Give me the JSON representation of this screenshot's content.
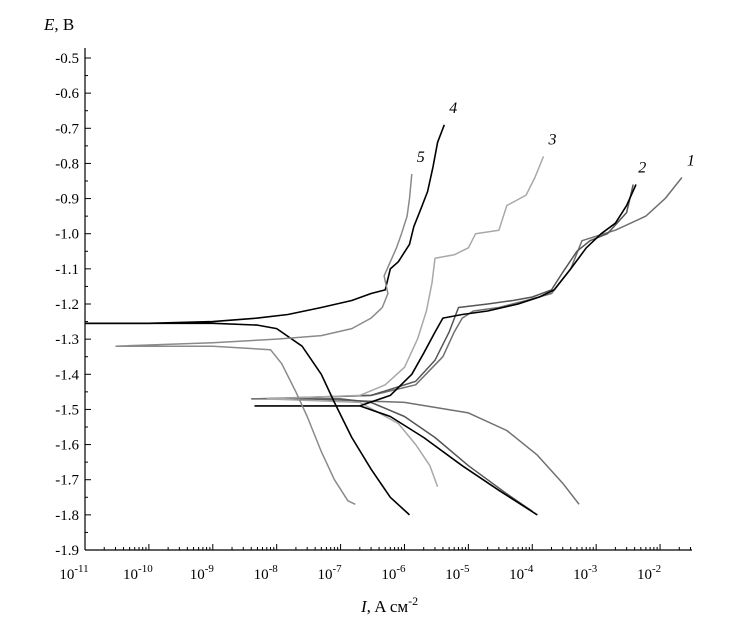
{
  "chart_data": {
    "type": "line",
    "title": "",
    "ylabel_symbol": "E",
    "ylabel_unit": ", B",
    "xlabel_symbol": "I",
    "xlabel_unit": ", A см",
    "xlabel_exp": "-2",
    "x_scale": "log",
    "xlim": [
      1e-11,
      0.031623
    ],
    "ylim": [
      -1.9,
      -0.5
    ],
    "grid": false,
    "y_ticks": [
      "-0.5",
      "-0.6",
      "-0.7",
      "-0.8",
      "-0.9",
      "-1.0",
      "-1.1",
      "-1.2",
      "-1.3",
      "-1.4",
      "-1.5",
      "-1.6",
      "-1.7",
      "-1.8",
      "-1.9"
    ],
    "x_ticks": [
      {
        "base": "10",
        "exp": "-11"
      },
      {
        "base": "10",
        "exp": "-10"
      },
      {
        "base": "10",
        "exp": "-9"
      },
      {
        "base": "10",
        "exp": "-8"
      },
      {
        "base": "10",
        "exp": "-7"
      },
      {
        "base": "10",
        "exp": "-6"
      },
      {
        "base": "10",
        "exp": "-5"
      },
      {
        "base": "10",
        "exp": "-4"
      },
      {
        "base": "10",
        "exp": "-3"
      },
      {
        "base": "10",
        "exp": "-2"
      }
    ],
    "series": [
      {
        "name": "1",
        "color": "#707070",
        "cathodic": [
          [
            4e-09,
            -1.47
          ],
          [
            3e-08,
            -1.47
          ],
          [
            1e-06,
            -1.48
          ],
          [
            1e-05,
            -1.51
          ],
          [
            4e-05,
            -1.56
          ],
          [
            0.00012,
            -1.63
          ],
          [
            0.0003,
            -1.71
          ],
          [
            0.00054,
            -1.77
          ]
        ],
        "anodic": [
          [
            4e-09,
            -1.47
          ],
          [
            3e-07,
            -1.46
          ],
          [
            1.5e-06,
            -1.43
          ],
          [
            4e-06,
            -1.35
          ],
          [
            6e-06,
            -1.28
          ],
          [
            8e-06,
            -1.24
          ],
          [
            1.2e-05,
            -1.22
          ],
          [
            3e-05,
            -1.21
          ],
          [
            8e-05,
            -1.19
          ],
          [
            0.0002,
            -1.17
          ],
          [
            0.0004,
            -1.1
          ],
          [
            0.0006,
            -1.02
          ],
          [
            0.002,
            -0.99
          ],
          [
            0.006,
            -0.95
          ],
          [
            0.012,
            -0.9
          ],
          [
            0.022,
            -0.84
          ]
        ]
      },
      {
        "name": "2",
        "color": "#555555",
        "cathodic": [
          [
            7e-09,
            -1.47
          ],
          [
            1e-07,
            -1.47
          ],
          [
            3e-07,
            -1.48
          ],
          [
            1e-06,
            -1.52
          ],
          [
            3e-06,
            -1.58
          ],
          [
            1e-05,
            -1.66
          ],
          [
            4e-05,
            -1.74
          ],
          [
            0.0001,
            -1.79
          ]
        ],
        "anodic": [
          [
            7e-09,
            -1.47
          ],
          [
            3e-07,
            -1.46
          ],
          [
            1.5e-06,
            -1.42
          ],
          [
            3e-06,
            -1.36
          ],
          [
            5e-06,
            -1.28
          ],
          [
            7e-06,
            -1.21
          ],
          [
            2e-05,
            -1.2
          ],
          [
            5e-05,
            -1.19
          ],
          [
            0.0001,
            -1.18
          ],
          [
            0.0002,
            -1.16
          ],
          [
            0.0003,
            -1.11
          ],
          [
            0.0005,
            -1.05
          ],
          [
            0.0008,
            -1.02
          ],
          [
            0.0015,
            -1.0
          ],
          [
            0.003,
            -0.94
          ],
          [
            0.0038,
            -0.86
          ]
        ]
      },
      {
        "name": "3",
        "color": "#a8a8a8",
        "cathodic": [
          [
            7e-09,
            -1.47
          ],
          [
            2e-07,
            -1.48
          ],
          [
            8e-07,
            -1.54
          ],
          [
            1.5e-06,
            -1.6
          ],
          [
            2.5e-06,
            -1.66
          ],
          [
            3.3e-06,
            -1.72
          ]
        ],
        "anodic": [
          [
            7e-09,
            -1.47
          ],
          [
            2e-07,
            -1.46
          ],
          [
            5e-07,
            -1.43
          ],
          [
            1e-06,
            -1.38
          ],
          [
            1.6e-06,
            -1.3
          ],
          [
            2.2e-06,
            -1.22
          ],
          [
            2.7e-06,
            -1.14
          ],
          [
            3e-06,
            -1.07
          ],
          [
            6e-06,
            -1.06
          ],
          [
            1e-05,
            -1.04
          ],
          [
            1.3e-05,
            -1.0
          ],
          [
            3e-05,
            -0.99
          ],
          [
            4e-05,
            -0.92
          ],
          [
            8e-05,
            -0.89
          ],
          [
            0.00011,
            -0.84
          ],
          [
            0.00015,
            -0.78
          ]
        ]
      },
      {
        "name": "4",
        "color": "#000000",
        "cathodic": [
          [
            1e-11,
            -1.255
          ],
          [
            1e-10,
            -1.255
          ],
          [
            1e-09,
            -1.255
          ],
          [
            5e-09,
            -1.26
          ],
          [
            1e-08,
            -1.27
          ],
          [
            2.5e-08,
            -1.32
          ],
          [
            5e-08,
            -1.4
          ],
          [
            8e-08,
            -1.48
          ],
          [
            1.5e-07,
            -1.58
          ],
          [
            3e-07,
            -1.67
          ],
          [
            6e-07,
            -1.75
          ],
          [
            1.2e-06,
            -1.8
          ]
        ],
        "anodic": [
          [
            1e-11,
            -1.255
          ],
          [
            1e-10,
            -1.255
          ],
          [
            1e-09,
            -1.25
          ],
          [
            5e-09,
            -1.24
          ],
          [
            1.5e-08,
            -1.23
          ],
          [
            5e-08,
            -1.21
          ],
          [
            1.5e-07,
            -1.19
          ],
          [
            3e-07,
            -1.17
          ],
          [
            5e-07,
            -1.16
          ],
          [
            6e-07,
            -1.1
          ],
          [
            8e-07,
            -1.08
          ],
          [
            1.2e-06,
            -1.03
          ],
          [
            1.4e-06,
            -0.98
          ],
          [
            1.8e-06,
            -0.93
          ],
          [
            2.3e-06,
            -0.88
          ],
          [
            2.8e-06,
            -0.81
          ],
          [
            3.3e-06,
            -0.74
          ],
          [
            4.2e-06,
            -0.69
          ]
        ],
        "branch": [
          [
            4.5e-09,
            -1.49
          ],
          [
            2e-08,
            -1.49
          ],
          [
            8e-08,
            -1.49
          ],
          [
            2e-07,
            -1.49
          ],
          [
            6e-07,
            -1.52
          ],
          [
            2e-06,
            -1.58
          ],
          [
            8e-06,
            -1.66
          ],
          [
            3e-05,
            -1.73
          ],
          [
            0.00012,
            -1.8
          ]
        ],
        "branch_up": [
          [
            2e-07,
            -1.49
          ],
          [
            6e-07,
            -1.46
          ],
          [
            1.3e-06,
            -1.4
          ],
          [
            2e-06,
            -1.34
          ],
          [
            3e-06,
            -1.28
          ],
          [
            4e-06,
            -1.24
          ],
          [
            8e-06,
            -1.23
          ],
          [
            2e-05,
            -1.22
          ],
          [
            6e-05,
            -1.2
          ],
          [
            0.00013,
            -1.18
          ],
          [
            0.00022,
            -1.16
          ],
          [
            0.0004,
            -1.1
          ],
          [
            0.0007,
            -1.04
          ],
          [
            0.0012,
            -1.0
          ],
          [
            0.002,
            -0.97
          ],
          [
            0.003,
            -0.92
          ],
          [
            0.0042,
            -0.86
          ]
        ]
      },
      {
        "name": "5",
        "color": "#8a8a8a",
        "cathodic": [
          [
            3e-11,
            -1.32
          ],
          [
            1e-10,
            -1.32
          ],
          [
            1e-09,
            -1.32
          ],
          [
            8e-09,
            -1.33
          ],
          [
            1.2e-08,
            -1.37
          ],
          [
            2e-08,
            -1.45
          ],
          [
            3e-08,
            -1.52
          ],
          [
            5e-08,
            -1.62
          ],
          [
            8e-08,
            -1.7
          ],
          [
            1.3e-07,
            -1.76
          ],
          [
            1.7e-07,
            -1.77
          ]
        ],
        "anodic": [
          [
            3e-11,
            -1.32
          ],
          [
            1e-09,
            -1.31
          ],
          [
            1e-08,
            -1.3
          ],
          [
            5e-08,
            -1.29
          ],
          [
            1.5e-07,
            -1.27
          ],
          [
            3e-07,
            -1.24
          ],
          [
            4.5e-07,
            -1.21
          ],
          [
            5.5e-07,
            -1.17
          ],
          [
            4.8e-07,
            -1.12
          ],
          [
            6e-07,
            -1.08
          ],
          [
            7.5e-07,
            -1.04
          ],
          [
            9e-07,
            -1.0
          ],
          [
            1.1e-06,
            -0.95
          ],
          [
            1.2e-06,
            -0.9
          ],
          [
            1.3e-06,
            -0.83
          ]
        ]
      }
    ]
  }
}
